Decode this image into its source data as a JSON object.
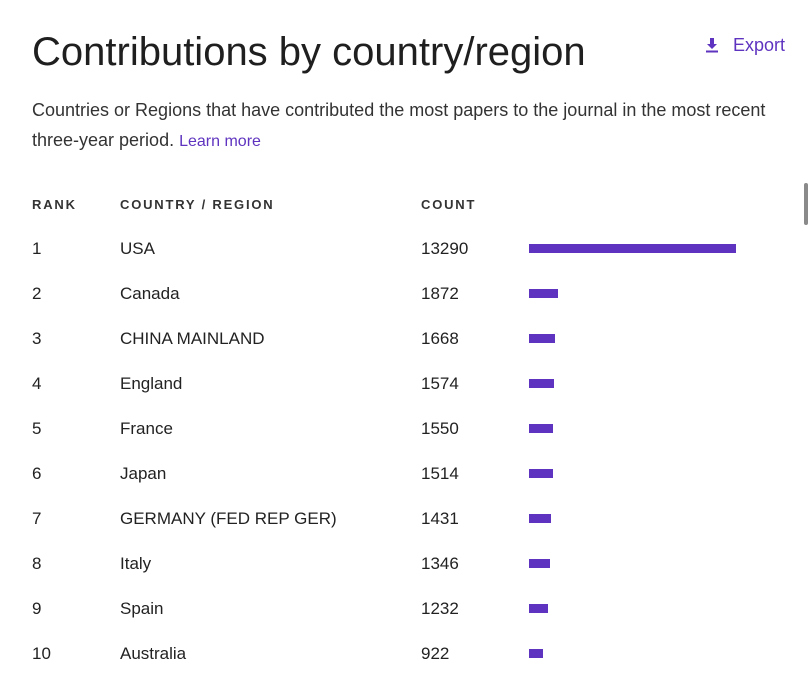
{
  "header": {
    "title": "Contributions by country/region",
    "export_label": "Export"
  },
  "description": {
    "text": "Countries or Regions that have contributed the most papers to the journal in the most recent three-year period.",
    "link_label": "Learn more"
  },
  "table": {
    "columns": [
      "RANK",
      "COUNTRY / REGION",
      "COUNT"
    ],
    "max_count": 13290,
    "rows": [
      {
        "rank": "1",
        "country": "USA",
        "count": 13290
      },
      {
        "rank": "2",
        "country": "Canada",
        "count": 1872
      },
      {
        "rank": "3",
        "country": "CHINA MAINLAND",
        "count": 1668
      },
      {
        "rank": "4",
        "country": "England",
        "count": 1574
      },
      {
        "rank": "5",
        "country": "France",
        "count": 1550
      },
      {
        "rank": "6",
        "country": "Japan",
        "count": 1514
      },
      {
        "rank": "7",
        "country": "GERMANY (FED REP GER)",
        "count": 1431
      },
      {
        "rank": "8",
        "country": "Italy",
        "count": 1346
      },
      {
        "rank": "9",
        "country": "Spain",
        "count": 1232
      },
      {
        "rank": "10",
        "country": "Australia",
        "count": 922
      }
    ]
  },
  "colors": {
    "accent": "#5e33bf",
    "text": "#222222"
  },
  "icons": {
    "export": "download-icon"
  }
}
